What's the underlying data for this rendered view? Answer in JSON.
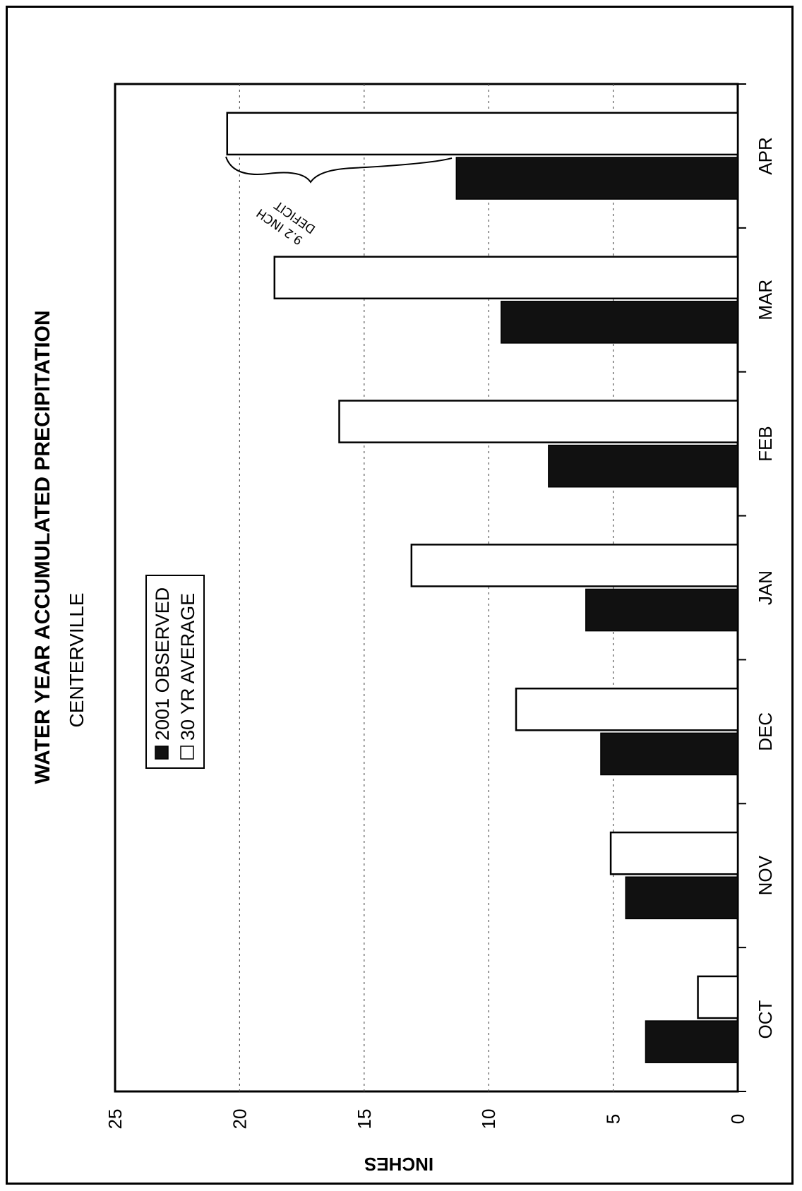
{
  "chart_data": {
    "type": "bar",
    "title": "WATER YEAR ACCUMULATED PRECIPITATION",
    "subtitle": "CENTERVILLE",
    "ylabel": "INCHES",
    "xlabel": "",
    "categories": [
      "OCT",
      "NOV",
      "DEC",
      "JAN",
      "FEB",
      "MAR",
      "APR"
    ],
    "series": [
      {
        "name": "2001 OBSERVED",
        "color": "#111111",
        "values": [
          3.7,
          4.5,
          5.5,
          6.1,
          7.6,
          9.5,
          11.3
        ]
      },
      {
        "name": "30 YR AVERAGE",
        "color": "#ffffff",
        "values": [
          1.6,
          5.1,
          8.9,
          13.1,
          16.0,
          18.6,
          20.5
        ]
      }
    ],
    "ylim": [
      0,
      25
    ],
    "yticks": [
      0,
      5,
      10,
      15,
      20,
      25
    ],
    "ytick_labels": [
      "0",
      "5",
      "10",
      "15",
      "20",
      "25"
    ],
    "grid": true,
    "legend_position": "top-left",
    "annotation": {
      "text_line1": "9.2 INCH",
      "text_line2": "DEFICIT",
      "category": "APR"
    }
  }
}
